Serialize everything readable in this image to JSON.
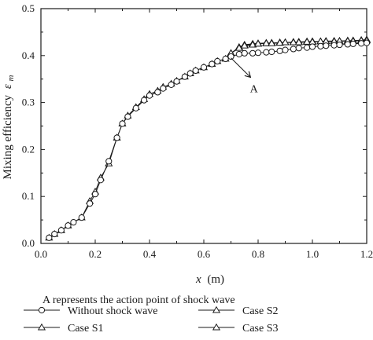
{
  "chart_data": {
    "type": "line",
    "xlabel_var": "x",
    "xlabel_unit": "(m)",
    "ylabel_text": "Mixing efficiency",
    "ylabel_var": "ε",
    "ylabel_sub": "m",
    "xlim": [
      0.0,
      1.2
    ],
    "ylim": [
      0.0,
      0.5
    ],
    "xticks": [
      "0.0",
      "0.2",
      "0.4",
      "0.6",
      "0.8",
      "1.0",
      "1.2"
    ],
    "yticks": [
      "0.0",
      "0.1",
      "0.2",
      "0.3",
      "0.4",
      "0.5"
    ],
    "grid": false,
    "annotation": {
      "label": "A",
      "point": [
        0.7,
        0.395
      ],
      "label_at": [
        0.77,
        0.355
      ]
    },
    "legend_title": "A represents the action point of shock wave",
    "series": [
      {
        "name": "Without shock wave",
        "marker": "circle",
        "x": [
          0.03,
          0.05,
          0.075,
          0.1,
          0.12,
          0.15,
          0.18,
          0.2,
          0.22,
          0.25,
          0.28,
          0.3,
          0.32,
          0.35,
          0.38,
          0.4,
          0.43,
          0.45,
          0.48,
          0.5,
          0.53,
          0.55,
          0.57,
          0.6,
          0.63,
          0.65,
          0.68,
          0.7,
          0.73,
          0.75,
          0.78,
          0.8,
          0.83,
          0.85,
          0.88,
          0.9,
          0.93,
          0.95,
          0.98,
          1.0,
          1.03,
          1.05,
          1.08,
          1.1,
          1.13,
          1.15,
          1.18,
          1.2
        ],
        "values": [
          0.012,
          0.02,
          0.028,
          0.038,
          0.045,
          0.055,
          0.085,
          0.105,
          0.135,
          0.175,
          0.225,
          0.255,
          0.27,
          0.288,
          0.305,
          0.315,
          0.322,
          0.33,
          0.338,
          0.345,
          0.355,
          0.362,
          0.368,
          0.375,
          0.382,
          0.388,
          0.393,
          0.398,
          0.403,
          0.405,
          0.405,
          0.406,
          0.407,
          0.408,
          0.41,
          0.412,
          0.414,
          0.416,
          0.417,
          0.419,
          0.42,
          0.421,
          0.422,
          0.423,
          0.424,
          0.425,
          0.426,
          0.427
        ]
      },
      {
        "name": "Case S1",
        "marker": "triangle",
        "x": [
          0.03,
          0.05,
          0.075,
          0.1,
          0.15,
          0.18,
          0.2,
          0.22,
          0.25,
          0.28,
          0.3,
          0.32,
          0.35,
          0.38,
          0.4,
          0.43,
          0.45,
          0.48,
          0.5,
          0.53,
          0.55,
          0.57,
          0.6,
          0.63,
          0.65,
          0.68,
          0.7,
          0.73,
          0.75,
          0.78,
          0.8,
          0.83,
          0.85,
          0.88,
          0.9,
          0.93,
          0.95,
          0.98,
          1.0,
          1.03,
          1.05,
          1.08,
          1.1,
          1.13,
          1.15,
          1.18,
          1.2
        ],
        "values": [
          0.012,
          0.02,
          0.028,
          0.038,
          0.055,
          0.09,
          0.11,
          0.14,
          0.17,
          0.225,
          0.255,
          0.272,
          0.29,
          0.307,
          0.318,
          0.325,
          0.333,
          0.34,
          0.346,
          0.355,
          0.362,
          0.368,
          0.375,
          0.382,
          0.388,
          0.393,
          0.405,
          0.418,
          0.423,
          0.425,
          0.426,
          0.427,
          0.427,
          0.428,
          0.428,
          0.429,
          0.429,
          0.43,
          0.43,
          0.43,
          0.431,
          0.431,
          0.431,
          0.432,
          0.432,
          0.432,
          0.432
        ]
      },
      {
        "name": "Case S2",
        "marker": "triangle",
        "x": [
          0.7,
          0.73,
          0.75,
          0.78,
          0.8,
          0.83,
          0.85,
          0.88,
          0.9,
          0.93,
          0.95,
          0.98,
          1.0,
          1.03,
          1.05,
          1.08,
          1.1,
          1.13,
          1.15,
          1.18,
          1.2
        ],
        "values": [
          0.405,
          0.417,
          0.422,
          0.424,
          0.425,
          0.426,
          0.427,
          0.427,
          0.428,
          0.428,
          0.429,
          0.429,
          0.43,
          0.43,
          0.43,
          0.431,
          0.431,
          0.431,
          0.432,
          0.433,
          0.434
        ]
      },
      {
        "name": "Case S3",
        "marker": "triangle",
        "x": [
          0.7,
          0.73,
          0.75,
          0.78,
          0.8,
          0.83,
          0.85,
          0.88,
          0.9,
          0.93,
          0.95,
          0.98,
          1.0,
          1.03,
          1.05,
          1.08,
          1.1,
          1.13,
          1.15,
          1.18,
          1.2
        ],
        "values": [
          0.405,
          0.416,
          0.421,
          0.423,
          0.425,
          0.426,
          0.426,
          0.427,
          0.428,
          0.428,
          0.428,
          0.429,
          0.429,
          0.43,
          0.43,
          0.43,
          0.431,
          0.431,
          0.431,
          0.432,
          0.432
        ]
      }
    ]
  }
}
